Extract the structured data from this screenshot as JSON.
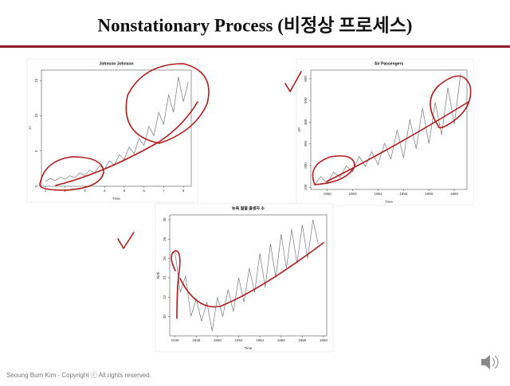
{
  "header": {
    "title": "Nonstationary Process (비정상 프로세스)"
  },
  "chart_data": [
    {
      "type": "line",
      "title": "Johnson Johnson",
      "x_label": "Time",
      "y_label": "JJ",
      "color": "#777777",
      "x": [
        1,
        1.25,
        1.5,
        1.75,
        2,
        2.25,
        2.5,
        2.75,
        3,
        3.25,
        3.5,
        3.75,
        4,
        4.25,
        4.5,
        4.75,
        5,
        5.25,
        5.5,
        5.75,
        6,
        6.25,
        6.5,
        6.75,
        7,
        7.25,
        7.5,
        7.75,
        8,
        8.25
      ],
      "values": [
        0.7,
        1.1,
        0.8,
        1.3,
        1.0,
        1.5,
        1.2,
        1.9,
        1.5,
        2.3,
        1.9,
        2.9,
        2.4,
        3.6,
        3.0,
        4.5,
        3.8,
        5.6,
        4.6,
        6.8,
        5.8,
        8.5,
        7.2,
        10.5,
        8.8,
        13.0,
        10.5,
        15.5,
        12.0,
        14.8
      ],
      "xlim": [
        0.8,
        8.4
      ],
      "xticks": [
        1,
        2,
        3,
        4,
        5,
        6,
        7,
        8
      ],
      "ylim": [
        0,
        16.5
      ],
      "yticks": [
        0,
        5,
        10,
        15
      ]
    },
    {
      "type": "line",
      "title": "Air Passengers",
      "x_label": "Time",
      "y_label": "AP",
      "color": "#777777",
      "x": [
        1949,
        1949.5,
        1950,
        1950.5,
        1951,
        1951.5,
        1952,
        1952.5,
        1953,
        1953.5,
        1954,
        1954.5,
        1955,
        1955.5,
        1956,
        1956.5,
        1957,
        1957.5,
        1958,
        1958.5,
        1959,
        1959.5,
        1960,
        1960.5
      ],
      "values": [
        112,
        148,
        118,
        170,
        145,
        199,
        171,
        242,
        196,
        264,
        204,
        302,
        229,
        364,
        235,
        413,
        278,
        465,
        301,
        491,
        342,
        559,
        390,
        622
      ],
      "xlim": [
        1948.7,
        1961
      ],
      "xticks": [
        1950,
        1952,
        1954,
        1956,
        1958,
        1960
      ],
      "ylim": [
        90,
        640
      ],
      "yticks": [
        100,
        200,
        300,
        400,
        500,
        600
      ]
    },
    {
      "type": "line",
      "title": "뉴욕 월별 출생자 수",
      "x_label": "Time",
      "y_label": "birth",
      "color": "#777777",
      "x": [
        1946,
        1946.5,
        1947,
        1947.5,
        1948,
        1948.5,
        1949,
        1949.5,
        1950,
        1950.5,
        1951,
        1951.5,
        1952,
        1952.5,
        1953,
        1953.5,
        1954,
        1954.5,
        1955,
        1955.5,
        1956,
        1956.5,
        1957,
        1957.5,
        1958,
        1958.5,
        1959,
        1959.5
      ],
      "values": [
        26.7,
        22.5,
        24.2,
        20.0,
        21.8,
        19.5,
        21.5,
        18.5,
        22.0,
        20.0,
        22.8,
        20.5,
        24.0,
        21.5,
        25.0,
        22.5,
        26.5,
        23.0,
        27.5,
        24.0,
        28.5,
        25.0,
        29.0,
        25.5,
        29.5,
        26.0,
        30.0,
        27.5
      ],
      "xlim": [
        1945.5,
        1960.3
      ],
      "xticks": [
        1946,
        1948,
        1950,
        1952,
        1954,
        1956,
        1958,
        1960
      ],
      "ylim": [
        18,
        30.5
      ],
      "yticks": [
        20,
        22,
        24,
        26,
        28,
        30
      ]
    }
  ],
  "footer": {
    "text": "Seoung Bum Kim - Copyright ⓒ All rights reserved."
  }
}
